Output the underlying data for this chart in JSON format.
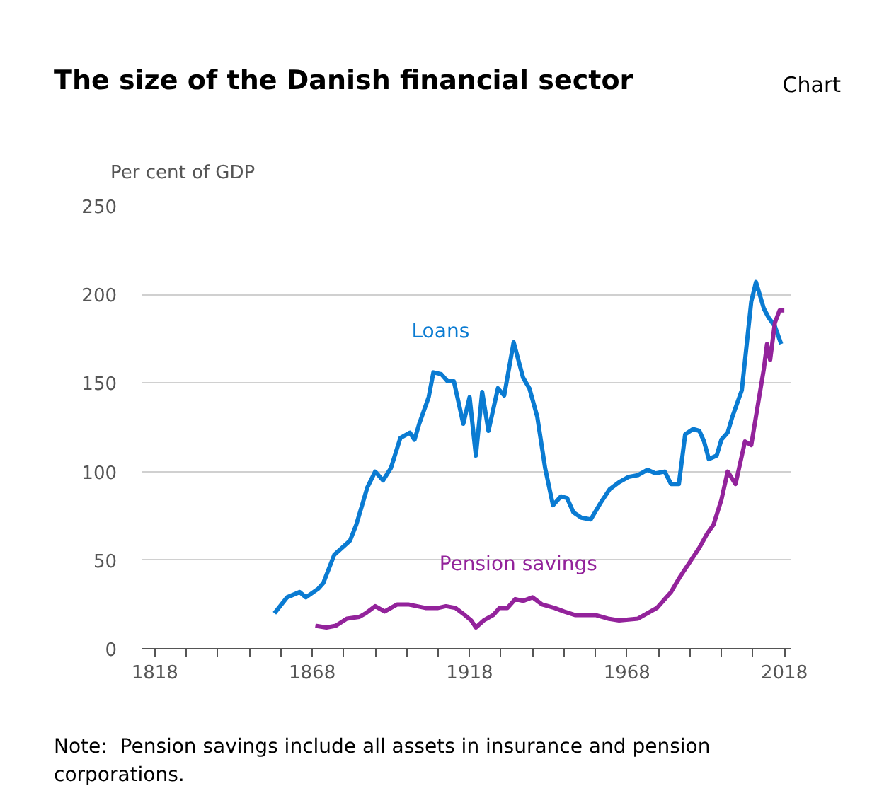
{
  "chart_data": {
    "type": "line",
    "title": "The size of the Danish financial sector",
    "ylabel": "Per cent of GDP",
    "annotations": [
      "Chart",
      "Note:  Pension savings include all assets in insurance and pension corporations."
    ],
    "xlim": [
      1814,
      2020
    ],
    "ylim": [
      0,
      250
    ],
    "yticks": [
      0,
      50,
      100,
      150,
      200,
      250
    ],
    "xticks": [
      {
        "value": 1818,
        "label": "1818"
      },
      {
        "value": 1828,
        "label": null
      },
      {
        "value": 1838,
        "label": null
      },
      {
        "value": 1848,
        "label": null
      },
      {
        "value": 1858,
        "label": null
      },
      {
        "value": 1868,
        "label": "1868"
      },
      {
        "value": 1878,
        "label": null
      },
      {
        "value": 1888,
        "label": null
      },
      {
        "value": 1898,
        "label": null
      },
      {
        "value": 1908,
        "label": null
      },
      {
        "value": 1918,
        "label": "1918"
      },
      {
        "value": 1928,
        "label": null
      },
      {
        "value": 1938,
        "label": null
      },
      {
        "value": 1948,
        "label": null
      },
      {
        "value": 1958,
        "label": null
      },
      {
        "value": 1968,
        "label": "1968"
      },
      {
        "value": 1978,
        "label": null
      },
      {
        "value": 1988,
        "label": null
      },
      {
        "value": 1998,
        "label": null
      },
      {
        "value": 2008,
        "label": null
      },
      {
        "value": 2018,
        "label": "2018"
      }
    ],
    "grid": "y",
    "legend": false,
    "marker": "none",
    "line_style": "solid",
    "series": [
      {
        "name": "Loans",
        "color": "#0a7bd2",
        "x": [
          1856,
          1860,
          1864,
          1866,
          1870,
          1871.5,
          1875,
          1880,
          1882,
          1885.5,
          1888,
          1890.5,
          1893,
          1896,
          1899,
          1900.5,
          1902,
          1905,
          1906.5,
          1909,
          1911,
          1913,
          1916,
          1918,
          1920,
          1922,
          1924,
          1927,
          1929,
          1932,
          1935,
          1937,
          1939.5,
          1942,
          1944.5,
          1947,
          1949,
          1951,
          1953.5,
          1956.5,
          1959.5,
          1962.5,
          1965.5,
          1968.5,
          1971.5,
          1974.5,
          1977,
          1980,
          1982,
          1984.5,
          1986.5,
          1989,
          1991,
          1992.5,
          1994,
          1996.5,
          1998,
          2000,
          2001.5,
          2004.5,
          2006,
          2007.5,
          2009,
          2011.5,
          2013,
          2015,
          2017
        ],
        "values": [
          20,
          29,
          32,
          29,
          34,
          37,
          53,
          61,
          70,
          91,
          100,
          95,
          102,
          119,
          122,
          118,
          127,
          142,
          156,
          155,
          151,
          151,
          127,
          142,
          109,
          145,
          123,
          147,
          143,
          173,
          153,
          147,
          131,
          102,
          81,
          86,
          85,
          77,
          74,
          73,
          82,
          90,
          94,
          97,
          98,
          101,
          99,
          100,
          93,
          93,
          121,
          124,
          123,
          117,
          107,
          109,
          118,
          122,
          131,
          146,
          171,
          196,
          207,
          192,
          187,
          182,
          172
        ]
      },
      {
        "name": "Pension savings",
        "color": "#93239b",
        "x": [
          1869,
          1872.5,
          1875.5,
          1879,
          1883,
          1885,
          1888,
          1891,
          1895,
          1898.5,
          1904,
          1908,
          1910.5,
          1913.5,
          1916.5,
          1918.5,
          1920,
          1922.5,
          1925.5,
          1927.5,
          1930,
          1932.5,
          1935,
          1938,
          1941,
          1945,
          1948,
          1951.5,
          1958,
          1962,
          1965.5,
          1971.5,
          1974.5,
          1977.5,
          1980,
          1982,
          1985,
          1988,
          1991,
          1993.5,
          1995.5,
          1998,
          2000,
          2002.5,
          2005.5,
          2007.5,
          2010,
          2011.5,
          2012.5,
          2013.5,
          2015,
          2016.5,
          2018
        ],
        "values": [
          13,
          12,
          13,
          17,
          18,
          20,
          24,
          21,
          25,
          25,
          23,
          23,
          24,
          23,
          19,
          16,
          12,
          16,
          19,
          23,
          23,
          28,
          27,
          29,
          25,
          23,
          21,
          19,
          19,
          17,
          16,
          17,
          20,
          23,
          28,
          32,
          41,
          49,
          57,
          65,
          70,
          84,
          100,
          93,
          117,
          115,
          142,
          158,
          172,
          163,
          184,
          191,
          191
        ]
      }
    ]
  }
}
